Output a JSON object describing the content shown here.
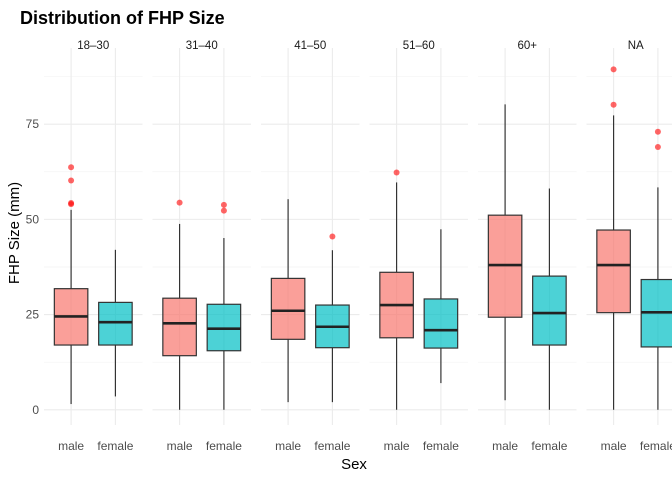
{
  "chart_data": {
    "type": "boxplot",
    "title": "Distribution of FHP Size",
    "xlabel": "Sex",
    "ylabel": "FHP Size (mm)",
    "ylim": [
      -4,
      95
    ],
    "yticks": [
      0,
      25,
      50,
      75
    ],
    "grid": true,
    "legend": "none",
    "colors": {
      "male": "#F8766D",
      "female": "#00BFC4",
      "outlier": "#FF0000",
      "grid": "#ebebeb"
    },
    "panels": [
      {
        "label": "18–30",
        "boxes": [
          {
            "sex": "male",
            "whisker_low": 1.5,
            "q1": 17,
            "median": 24.5,
            "q3": 31.8,
            "whisker_high": 52.5,
            "outliers": [
              54,
              54.3,
              60.2,
              63.7
            ]
          },
          {
            "sex": "female",
            "whisker_low": 3.5,
            "q1": 17,
            "median": 23,
            "q3": 28.2,
            "whisker_high": 42,
            "outliers": []
          }
        ]
      },
      {
        "label": "31–40",
        "boxes": [
          {
            "sex": "male",
            "whisker_low": 0,
            "q1": 14.2,
            "median": 22.7,
            "q3": 29.3,
            "whisker_high": 48.8,
            "outliers": [
              54.4
            ]
          },
          {
            "sex": "female",
            "whisker_low": 0,
            "q1": 15.5,
            "median": 21.3,
            "q3": 27.7,
            "whisker_high": 45.1,
            "outliers": [
              52.3,
              53.8
            ]
          }
        ]
      },
      {
        "label": "41–50",
        "boxes": [
          {
            "sex": "male",
            "whisker_low": 2,
            "q1": 18.5,
            "median": 26,
            "q3": 34.5,
            "whisker_high": 55.3,
            "outliers": []
          },
          {
            "sex": "female",
            "whisker_low": 2,
            "q1": 16.3,
            "median": 21.8,
            "q3": 27.5,
            "whisker_high": 41.9,
            "outliers": [
              45.5
            ]
          }
        ]
      },
      {
        "label": "51–60",
        "boxes": [
          {
            "sex": "male",
            "whisker_low": 0,
            "q1": 18.9,
            "median": 27.5,
            "q3": 36.1,
            "whisker_high": 59.7,
            "outliers": [
              62.3
            ]
          },
          {
            "sex": "female",
            "whisker_low": 7,
            "q1": 16.2,
            "median": 20.9,
            "q3": 29.1,
            "whisker_high": 47.4,
            "outliers": []
          }
        ]
      },
      {
        "label": "60+",
        "boxes": [
          {
            "sex": "male",
            "whisker_low": 2.5,
            "q1": 24.3,
            "median": 38,
            "q3": 51.1,
            "whisker_high": 80.2,
            "outliers": []
          },
          {
            "sex": "female",
            "whisker_low": 0,
            "q1": 17,
            "median": 25.4,
            "q3": 35.1,
            "whisker_high": 58.1,
            "outliers": []
          }
        ]
      },
      {
        "label": "NA",
        "boxes": [
          {
            "sex": "male",
            "whisker_low": 0,
            "q1": 25.5,
            "median": 38,
            "q3": 47.2,
            "whisker_high": 77.3,
            "outliers": [
              80.1,
              89.4
            ]
          },
          {
            "sex": "female",
            "whisker_low": 0,
            "q1": 16.5,
            "median": 25.6,
            "q3": 34.2,
            "whisker_high": 58.4,
            "outliers": [
              69,
              73
            ]
          }
        ]
      }
    ]
  }
}
